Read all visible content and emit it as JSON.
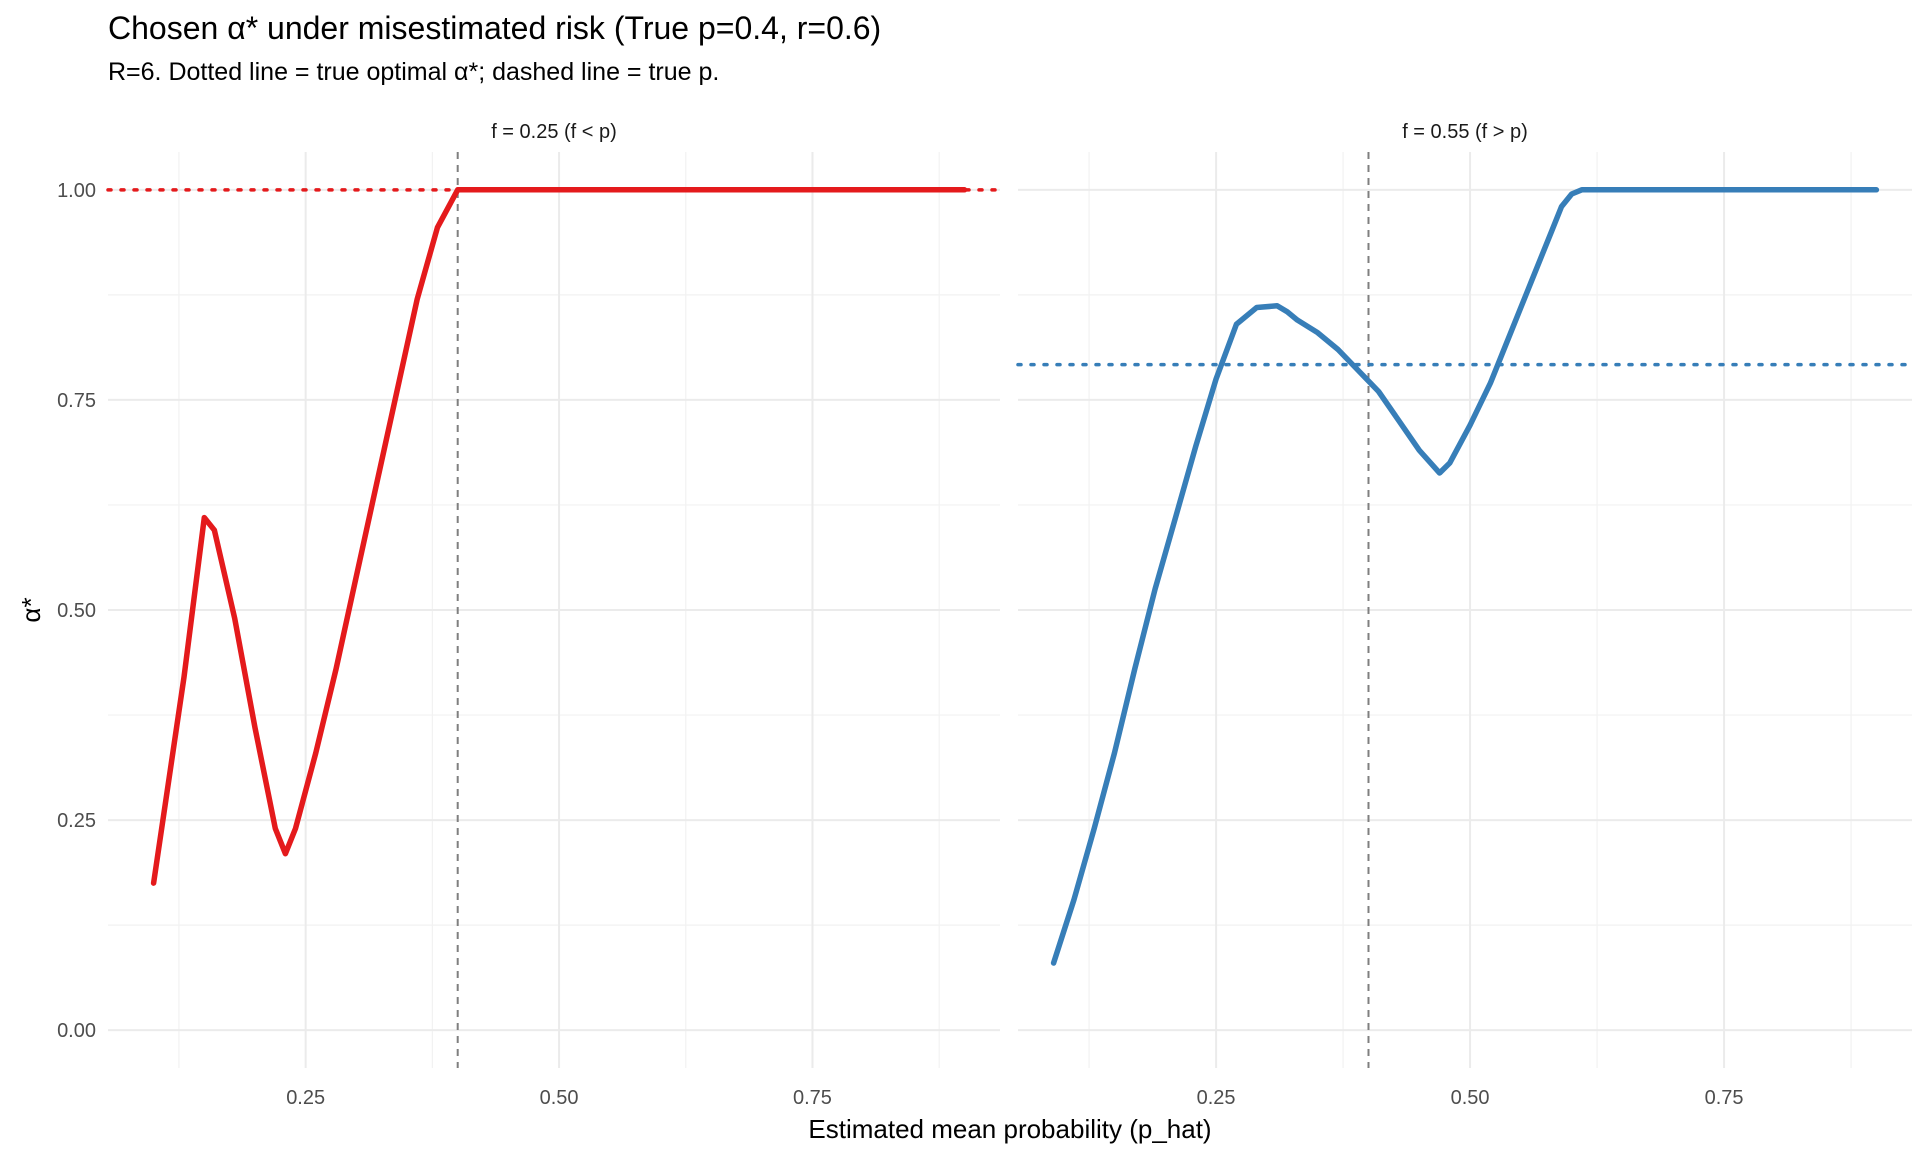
{
  "title": "Chosen α* under misestimated risk (True p=0.4, r=0.6)",
  "subtitle": "R=6. Dotted line = true optimal α*; dashed line = true p.",
  "chart_data": {
    "type": "line",
    "xlabel": "Estimated mean probability (p_hat)",
    "ylabel": "α*",
    "x_ticks": [
      0.25,
      0.5,
      0.75
    ],
    "x_tick_labels": [
      "0.25",
      "0.50",
      "0.75"
    ],
    "y_ticks": [
      0.0,
      0.25,
      0.5,
      0.75,
      1.0
    ],
    "y_tick_labels": [
      "0.00",
      "0.25",
      "0.50",
      "0.75",
      "1.00"
    ],
    "ylim": [
      -0.045,
      1.045
    ],
    "grid": true,
    "true_p": 0.4,
    "panels": [
      {
        "strip": "f = 0.25 (f < p)",
        "color": "#E41A1C",
        "xlim": [
          0.055,
          0.935
        ],
        "true_optimal_alpha": 1.0,
        "x": [
          0.1,
          0.13,
          0.15,
          0.16,
          0.18,
          0.2,
          0.22,
          0.23,
          0.24,
          0.26,
          0.28,
          0.3,
          0.32,
          0.34,
          0.36,
          0.38,
          0.4,
          0.45,
          0.5,
          0.55,
          0.6,
          0.65,
          0.7,
          0.75,
          0.8,
          0.85,
          0.9
        ],
        "y": [
          0.175,
          0.42,
          0.61,
          0.595,
          0.49,
          0.36,
          0.24,
          0.21,
          0.24,
          0.33,
          0.43,
          0.54,
          0.65,
          0.76,
          0.87,
          0.955,
          1.0,
          1.0,
          1.0,
          1.0,
          1.0,
          1.0,
          1.0,
          1.0,
          1.0,
          1.0,
          1.0
        ]
      },
      {
        "strip": "f = 0.55 (f > p)",
        "color": "#377EB8",
        "xlim": [
          0.055,
          0.935
        ],
        "true_optimal_alpha": 0.792,
        "x": [
          0.09,
          0.11,
          0.13,
          0.15,
          0.17,
          0.19,
          0.21,
          0.23,
          0.25,
          0.27,
          0.29,
          0.31,
          0.32,
          0.33,
          0.35,
          0.37,
          0.39,
          0.41,
          0.43,
          0.45,
          0.47,
          0.48,
          0.5,
          0.52,
          0.54,
          0.56,
          0.58,
          0.59,
          0.6,
          0.61,
          0.65,
          0.7,
          0.75,
          0.8,
          0.85,
          0.9
        ],
        "y": [
          0.08,
          0.155,
          0.24,
          0.33,
          0.43,
          0.525,
          0.61,
          0.695,
          0.775,
          0.84,
          0.86,
          0.862,
          0.855,
          0.845,
          0.83,
          0.81,
          0.785,
          0.76,
          0.725,
          0.69,
          0.663,
          0.675,
          0.72,
          0.77,
          0.83,
          0.89,
          0.95,
          0.98,
          0.995,
          1.0,
          1.0,
          1.0,
          1.0,
          1.0,
          1.0,
          1.0
        ]
      }
    ]
  }
}
